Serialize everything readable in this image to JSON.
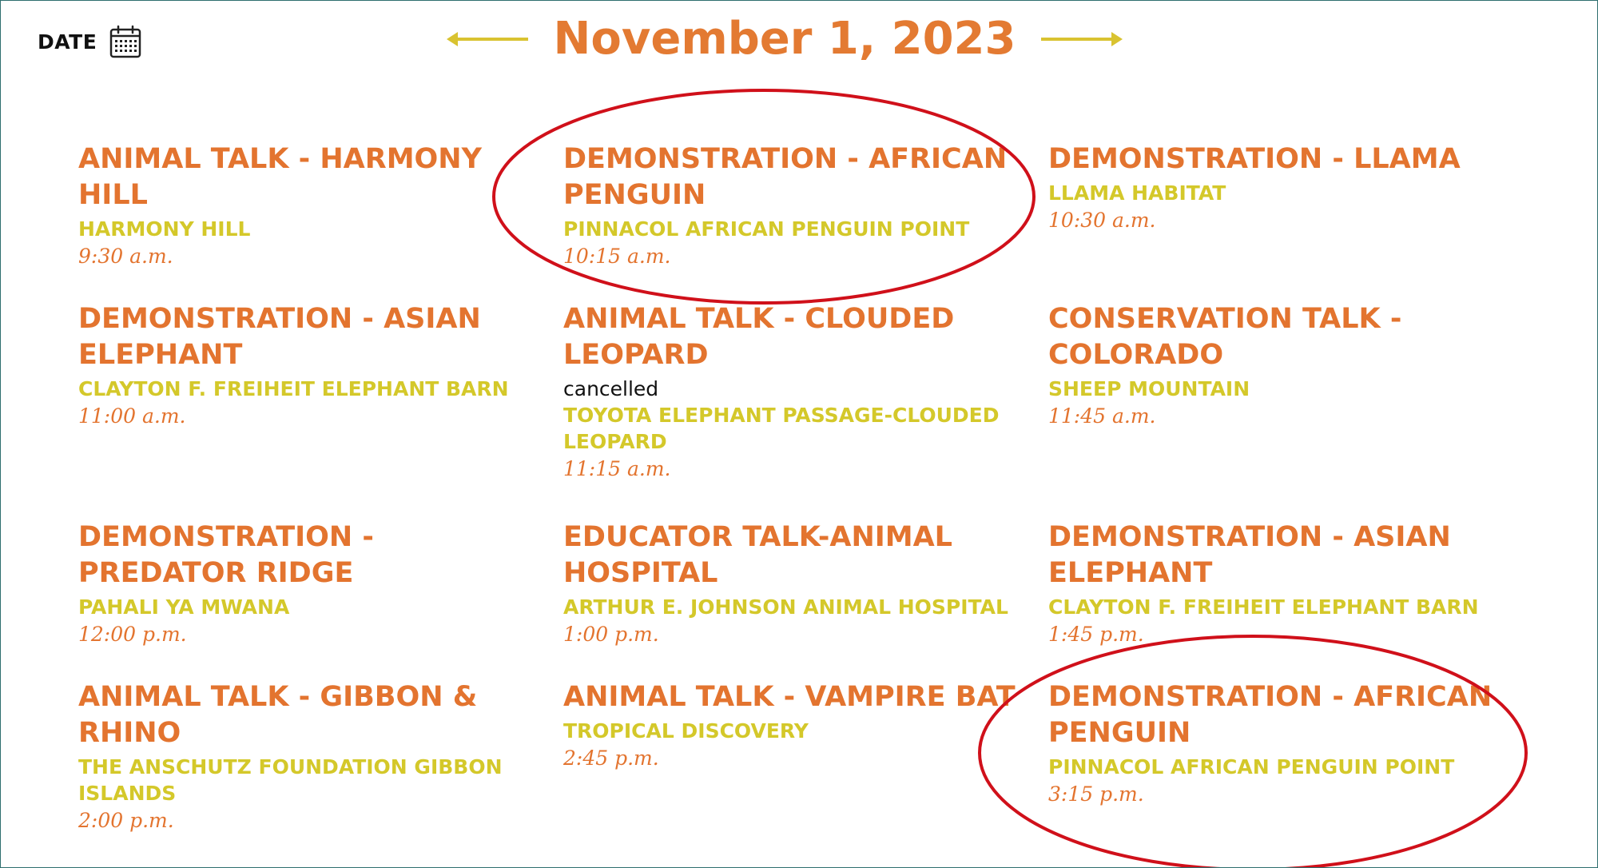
{
  "header": {
    "date_label": "DATE",
    "current_date": "November 1, 2023",
    "prev_arrow_color": "#d9c330",
    "next_arrow_color": "#d9c330"
  },
  "colors": {
    "title": "#e3742f",
    "location": "#d4c82a",
    "highlight_circle": "#d0101a"
  },
  "events": [
    {
      "title": "ANIMAL TALK - HARMONY HILL",
      "location": "HARMONY HILL",
      "status": "",
      "time": "9:30 a.m."
    },
    {
      "title": "DEMONSTRATION - AFRICAN PENGUIN",
      "location": "PINNACOL AFRICAN PENGUIN POINT",
      "status": "",
      "time": "10:15 a.m.",
      "highlighted": true
    },
    {
      "title": "DEMONSTRATION - LLAMA",
      "location": "LLAMA HABITAT",
      "status": "",
      "time": "10:30 a.m."
    },
    {
      "title": "DEMONSTRATION - ASIAN ELEPHANT",
      "location": "CLAYTON F. FREIHEIT ELEPHANT BARN",
      "status": "",
      "time": "11:00 a.m."
    },
    {
      "title": "ANIMAL TALK - CLOUDED LEOPARD",
      "location": "TOYOTA ELEPHANT PASSAGE-CLOUDED LEOPARD",
      "status": "cancelled",
      "time": "11:15 a.m."
    },
    {
      "title": "CONSERVATION TALK - COLORADO",
      "location": "SHEEP MOUNTAIN",
      "status": "",
      "time": "11:45 a.m."
    },
    {
      "title": "DEMONSTRATION - PREDATOR RIDGE",
      "location": "PAHALI YA MWANA",
      "status": "",
      "time": "12:00 p.m."
    },
    {
      "title": "EDUCATOR TALK-ANIMAL HOSPITAL",
      "location": "ARTHUR E. JOHNSON ANIMAL HOSPITAL",
      "status": "",
      "time": "1:00 p.m."
    },
    {
      "title": "DEMONSTRATION - ASIAN ELEPHANT",
      "location": "CLAYTON F. FREIHEIT ELEPHANT BARN",
      "status": "",
      "time": "1:45 p.m."
    },
    {
      "title": "ANIMAL TALK - GIBBON & RHINO",
      "location": "THE ANSCHUTZ FOUNDATION GIBBON ISLANDS",
      "status": "",
      "time": "2:00 p.m."
    },
    {
      "title": "ANIMAL TALK - VAMPIRE BAT",
      "location": "TROPICAL DISCOVERY",
      "status": "",
      "time": "2:45 p.m."
    },
    {
      "title": "DEMONSTRATION - AFRICAN PENGUIN",
      "location": "PINNACOL AFRICAN PENGUIN POINT",
      "status": "",
      "time": "3:15 p.m.",
      "highlighted": true
    }
  ]
}
